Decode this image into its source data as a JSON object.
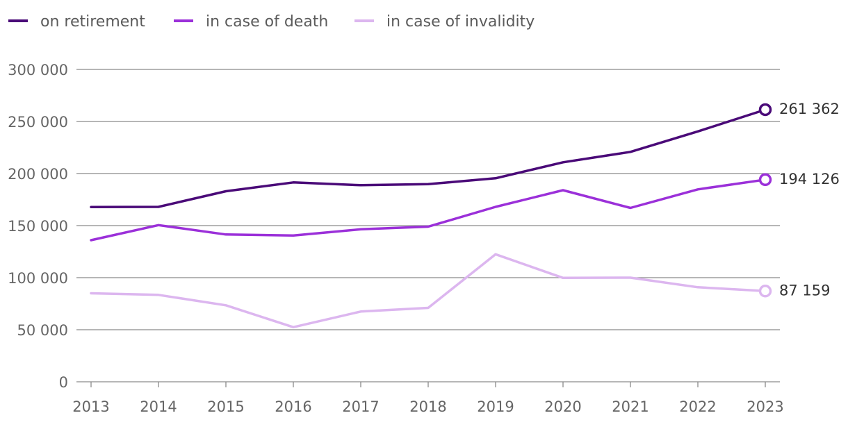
{
  "chart_data": {
    "type": "line",
    "categories": [
      "2013",
      "2014",
      "2015",
      "2016",
      "2017",
      "2018",
      "2019",
      "2020",
      "2021",
      "2022",
      "2023"
    ],
    "series": [
      {
        "name": "on retirement",
        "color": "#4a0a78",
        "values": [
          167800,
          168000,
          183000,
          191500,
          188800,
          189800,
          195500,
          210800,
          220800,
          240500,
          261362
        ]
      },
      {
        "name": "in case of death",
        "color": "#9b30d9",
        "values": [
          136000,
          150500,
          141500,
          140500,
          146500,
          149000,
          168000,
          184000,
          167000,
          184800,
          194126
        ]
      },
      {
        "name": "in case of invalidity",
        "color": "#dcb6ef",
        "values": [
          85000,
          83500,
          73500,
          52500,
          67500,
          71000,
          122500,
          99800,
          100000,
          90800,
          87159
        ]
      }
    ],
    "end_labels": [
      "261 362",
      "194 126",
      "87 159"
    ],
    "yticks": [
      0,
      50000,
      100000,
      150000,
      200000,
      250000,
      300000
    ],
    "ytick_labels": [
      "0",
      "50 000",
      "100 000",
      "150 000",
      "200 000",
      "250 000",
      "300 000"
    ],
    "ylim": [
      0,
      300000
    ],
    "title": "",
    "xlabel": "",
    "ylabel": "",
    "legend_position": "top-left",
    "grid": true
  }
}
